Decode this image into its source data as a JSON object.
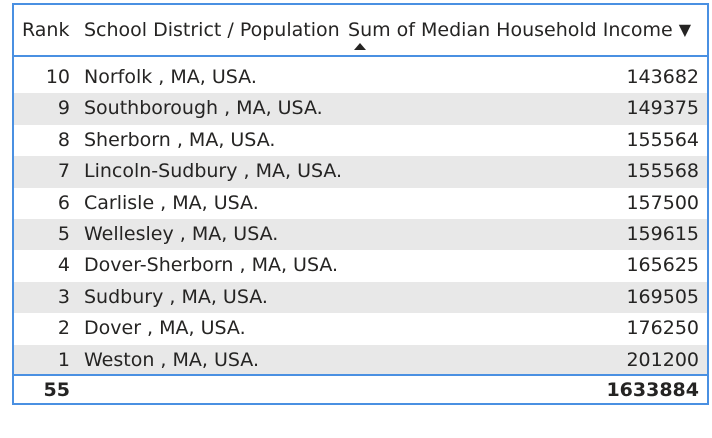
{
  "table": {
    "headers": {
      "rank": "Rank",
      "district": "School District / Population",
      "income": "Sum of Median Household Income",
      "sort_icon": "▼"
    },
    "rows": [
      {
        "rank": "10",
        "district": "Norfolk , MA, USA.",
        "income": "143682"
      },
      {
        "rank": "9",
        "district": "Southborough , MA, USA.",
        "income": "149375"
      },
      {
        "rank": "8",
        "district": "Sherborn , MA, USA.",
        "income": "155564"
      },
      {
        "rank": "7",
        "district": "Lincoln-Sudbury , MA, USA.",
        "income": "155568"
      },
      {
        "rank": "6",
        "district": "Carlisle , MA, USA.",
        "income": "157500"
      },
      {
        "rank": "5",
        "district": "Wellesley , MA, USA.",
        "income": "159615"
      },
      {
        "rank": "4",
        "district": "Dover-Sherborn , MA, USA.",
        "income": "165625"
      },
      {
        "rank": "3",
        "district": "Sudbury , MA, USA.",
        "income": "169505"
      },
      {
        "rank": "2",
        "district": "Dover , MA, USA.",
        "income": "176250"
      },
      {
        "rank": "1",
        "district": "Weston , MA, USA.",
        "income": "201200"
      }
    ],
    "total": {
      "rank": "55",
      "income": "1633884"
    }
  },
  "colors": {
    "border_accent": "#4a90e2",
    "alt_row": "#e8e8e8",
    "text": "#252423"
  },
  "icons": {
    "sort_descending": "sort-descending-icon",
    "sort_indicator": "sort-indicator-icon"
  }
}
